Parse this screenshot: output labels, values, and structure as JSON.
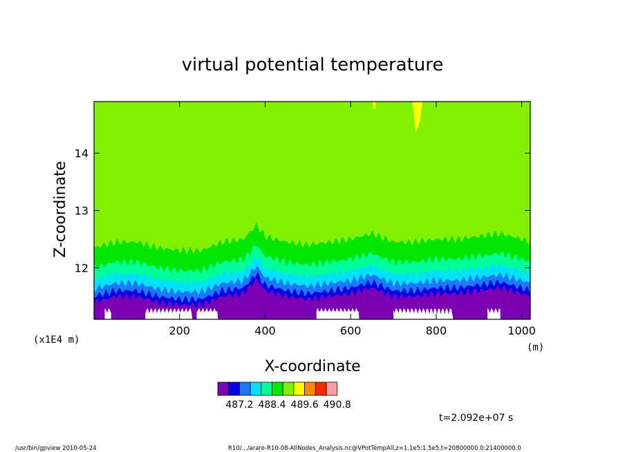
{
  "chart_data": {
    "type": "heatmap",
    "title": "virtual potential temperature",
    "xlabel": "X-coordinate",
    "ylabel": "Z-coordinate",
    "x_unit": "(m)",
    "y_scale_note": "(x1E4 m)",
    "xlim": [
      0,
      1020
    ],
    "ylim": [
      11.1,
      14.9
    ],
    "x_ticks": [
      "200",
      "400",
      "600",
      "800",
      "1000"
    ],
    "x_tick_values": [
      200,
      400,
      600,
      800,
      1000
    ],
    "y_ticks": [
      "12",
      "13",
      "14"
    ],
    "y_tick_values": [
      12,
      13,
      14
    ],
    "colorbar": {
      "colors": [
        "#7B00B4",
        "#0000E6",
        "#1E78FF",
        "#00E1FF",
        "#00FF96",
        "#00E600",
        "#82F000",
        "#FFFF00",
        "#FF8C00",
        "#FF2800",
        "#FFA0A0"
      ],
      "labels": [
        "487.2",
        "488.4",
        "489.6",
        "490.8"
      ],
      "label_after_box": [
        1,
        4,
        7,
        10
      ]
    },
    "boundary_layer_profile": {
      "x": [
        0,
        50,
        100,
        150,
        200,
        250,
        300,
        350,
        380,
        400,
        450,
        500,
        550,
        600,
        650,
        700,
        750,
        800,
        850,
        900,
        950,
        1000,
        1020
      ],
      "z_top_green": [
        12.35,
        12.45,
        12.45,
        12.35,
        12.3,
        12.3,
        12.45,
        12.5,
        12.75,
        12.55,
        12.45,
        12.4,
        12.45,
        12.5,
        12.6,
        12.45,
        12.45,
        12.5,
        12.5,
        12.55,
        12.6,
        12.5,
        12.45
      ]
    },
    "time_label": "t=2.092e+07 s"
  },
  "footer": {
    "left": "/usr/bin/gpview  2010-05-24",
    "right": "R10/.../arare-R10-08-AllNodes_Analysis.nc@VPotTempAll,z=1.1e5:1.5e5,t=20800000.0:21400000.0"
  }
}
